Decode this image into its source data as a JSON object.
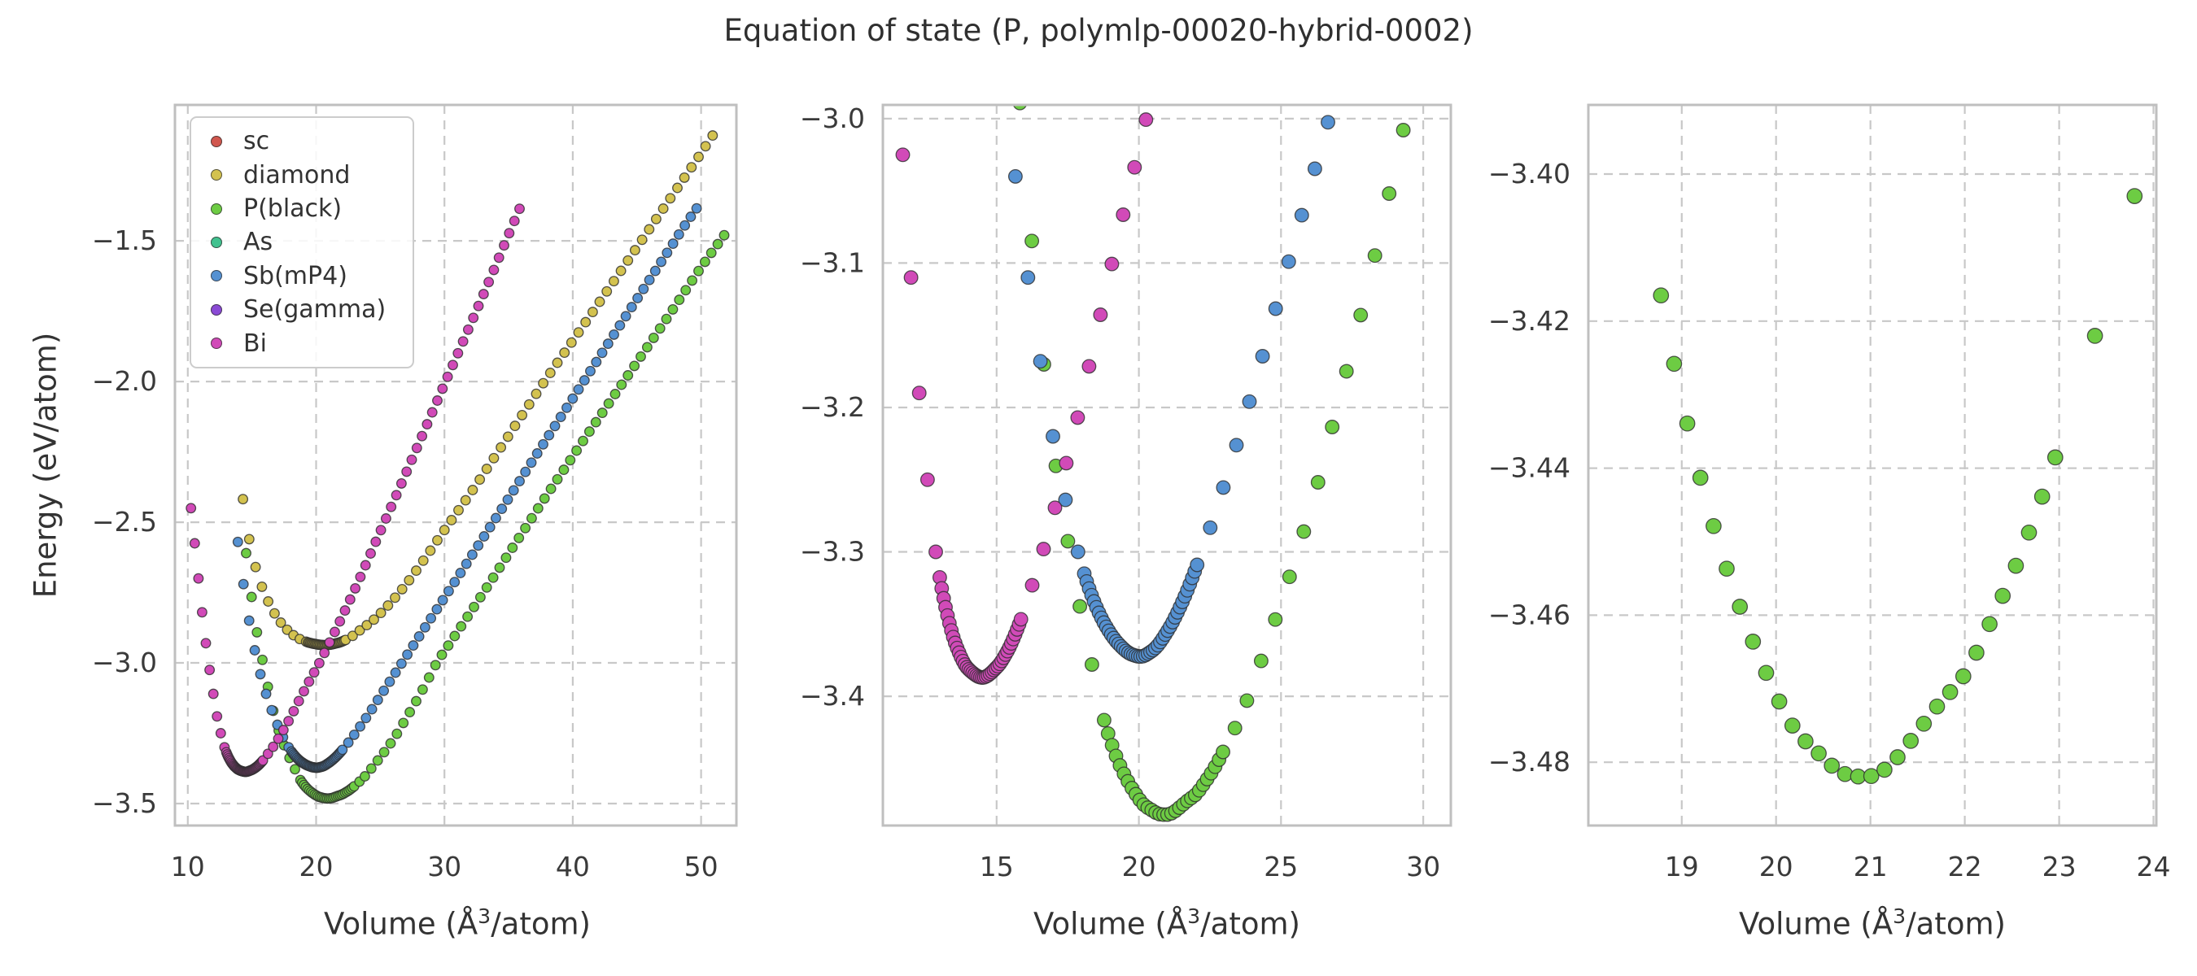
{
  "figure": {
    "title": "Equation of state (P, polymlp-00020-hybrid-0002)",
    "background": "#ffffff",
    "title_color": "#2f2f2f",
    "tick_color": "#3a3a3a",
    "label_color": "#333333",
    "grid_color": "#c8c8c8",
    "spine_color": "#bfbfbf",
    "marker_edge": "#2d2d2d",
    "legend_border": "#cccccc"
  },
  "axes_labels": {
    "x_pre": "Volume (Å",
    "x_sup": "3",
    "x_post": "/atom)",
    "x_full": "Volume (Å³/atom)",
    "y": "Energy (eV/atom)"
  },
  "legend": {
    "items": [
      {
        "label": "sc",
        "color": "#d1574e"
      },
      {
        "label": "diamond",
        "color": "#d3c24f"
      },
      {
        "label": "P(black)",
        "color": "#6dcc43"
      },
      {
        "label": "As",
        "color": "#41c28f"
      },
      {
        "label": "Sb(mP4)",
        "color": "#5591d2"
      },
      {
        "label": "Se(gamma)",
        "color": "#8a4ad5"
      },
      {
        "label": "Bi",
        "color": "#d14ab8"
      }
    ]
  },
  "chart_data": {
    "type": "scatter",
    "title": "Equation of state (P, polymlp-00020-hybrid-0002)",
    "xlabel": "Volume (Å³/atom)",
    "ylabel": "Energy (eV/atom)",
    "grid": "dashed",
    "legend_position": "upper-left of first panel",
    "series": [
      {
        "name": "sc",
        "color": "#d1574e",
        "visible": false,
        "note": "legend entry only; no distinct points discernible in the plots"
      },
      {
        "name": "diamond",
        "color": "#d3c24f",
        "visible": true,
        "v0": 20.7,
        "e_min": -2.937,
        "anchors": [
          [
            14.3,
            -2.418
          ],
          [
            14.75,
            -2.55
          ],
          [
            15.2,
            -2.645
          ],
          [
            15.7,
            -2.72
          ],
          [
            16.2,
            -2.775
          ],
          [
            16.8,
            -2.827
          ],
          [
            17.4,
            -2.865
          ],
          [
            18.1,
            -2.897
          ],
          [
            18.9,
            -2.919
          ],
          [
            19.7,
            -2.931
          ],
          [
            20.7,
            -2.937
          ],
          [
            21.7,
            -2.929
          ],
          [
            22.6,
            -2.911
          ],
          [
            23.5,
            -2.881
          ],
          [
            24.5,
            -2.846
          ],
          [
            25.5,
            -2.801
          ],
          [
            27.0,
            -2.721
          ],
          [
            28.5,
            -2.627
          ],
          [
            30.0,
            -2.528
          ],
          [
            32.0,
            -2.399
          ],
          [
            34.0,
            -2.262
          ],
          [
            36.0,
            -2.123
          ],
          [
            38.0,
            -1.986
          ],
          [
            40.0,
            -1.855
          ],
          [
            42.0,
            -1.723
          ],
          [
            44.0,
            -1.59
          ],
          [
            46.0,
            -1.456
          ],
          [
            48.0,
            -1.322
          ],
          [
            50.0,
            -1.188
          ],
          [
            50.91,
            -1.125
          ]
        ],
        "volume_segments": [
          [
            14.3,
            19.23,
            0.492
          ],
          [
            19.36,
            22.3,
            0.0947
          ],
          [
            22.85,
            50.91,
            0.55
          ]
        ]
      },
      {
        "name": "P(black)",
        "color": "#6dcc43",
        "visible": true,
        "v0": 20.95,
        "e_min": -3.482,
        "anchors": [
          [
            14.55,
            -2.61
          ],
          [
            14.97,
            -2.765
          ],
          [
            15.39,
            -2.89
          ],
          [
            15.82,
            -2.99
          ],
          [
            16.24,
            -3.085
          ],
          [
            16.66,
            -3.17
          ],
          [
            17.08,
            -3.24
          ],
          [
            17.5,
            -3.292
          ],
          [
            17.92,
            -3.337
          ],
          [
            18.35,
            -3.378
          ],
          [
            18.78,
            -3.4165
          ],
          [
            19.06,
            -3.434
          ],
          [
            19.34,
            -3.448
          ],
          [
            19.62,
            -3.459
          ],
          [
            19.9,
            -3.468
          ],
          [
            20.2,
            -3.4755
          ],
          [
            20.47,
            -3.479
          ],
          [
            20.73,
            -3.4816
          ],
          [
            20.95,
            -3.482
          ],
          [
            21.15,
            -3.481
          ],
          [
            21.4,
            -3.4775
          ],
          [
            21.7,
            -3.4725
          ],
          [
            22.0,
            -3.468
          ],
          [
            22.27,
            -3.461
          ],
          [
            22.55,
            -3.453
          ],
          [
            22.83,
            -3.4435
          ],
          [
            22.96,
            -3.4385
          ],
          [
            23.38,
            -3.422
          ],
          [
            23.8,
            -3.403
          ],
          [
            24.3,
            -3.3755
          ],
          [
            24.9,
            -3.341
          ],
          [
            25.5,
            -3.305
          ],
          [
            26.2,
            -3.259
          ],
          [
            27.0,
            -3.198
          ],
          [
            27.9,
            -3.128
          ],
          [
            28.65,
            -3.065
          ],
          [
            29.4,
            -3.0
          ],
          [
            30.5,
            -2.925
          ],
          [
            32.0,
            -2.822
          ],
          [
            33.5,
            -2.718
          ],
          [
            35.0,
            -2.612
          ],
          [
            36.5,
            -2.507
          ],
          [
            38.0,
            -2.402
          ],
          [
            39.5,
            -2.3
          ],
          [
            41.0,
            -2.198
          ],
          [
            42.5,
            -2.098
          ],
          [
            44.0,
            -1.998
          ],
          [
            45.5,
            -1.898
          ],
          [
            47.0,
            -1.798
          ],
          [
            48.5,
            -1.696
          ],
          [
            50.0,
            -1.594
          ],
          [
            51.8,
            -1.48
          ]
        ],
        "volume_segments": [
          [
            14.55,
            18.36,
            0.4222
          ],
          [
            18.78,
            22.97,
            0.1393
          ],
          [
            23.38,
            23.81,
            0.42
          ],
          [
            24.3,
            51.81,
            0.5
          ]
        ]
      },
      {
        "name": "As",
        "color": "#41c28f",
        "visible": false,
        "note": "legend entry only; no distinct points discernible in the plots"
      },
      {
        "name": "Sb(mP4)",
        "color": "#5591d2",
        "visible": true,
        "v0": 20.05,
        "e_min": -3.3725,
        "anchors": [
          [
            13.9,
            -2.57
          ],
          [
            14.34,
            -2.72
          ],
          [
            14.78,
            -2.85
          ],
          [
            15.22,
            -2.955
          ],
          [
            15.66,
            -3.04
          ],
          [
            16.1,
            -3.11
          ],
          [
            16.54,
            -3.168
          ],
          [
            16.98,
            -3.22
          ],
          [
            17.42,
            -3.264
          ],
          [
            17.86,
            -3.3
          ],
          [
            18.3,
            -3.328
          ],
          [
            18.8,
            -3.35
          ],
          [
            19.3,
            -3.364
          ],
          [
            19.75,
            -3.371
          ],
          [
            20.05,
            -3.3725
          ],
          [
            20.5,
            -3.368
          ],
          [
            21.0,
            -3.355
          ],
          [
            21.5,
            -3.336
          ],
          [
            22.05,
            -3.309
          ],
          [
            22.7,
            -3.272
          ],
          [
            23.4,
            -3.228
          ],
          [
            24.2,
            -3.175
          ],
          [
            25.0,
            -3.118
          ],
          [
            26.0,
            -3.048
          ],
          [
            27.0,
            -2.978
          ],
          [
            28.0,
            -2.908
          ],
          [
            29.5,
            -2.803
          ],
          [
            31.0,
            -2.698
          ],
          [
            32.5,
            -2.592
          ],
          [
            34.0,
            -2.486
          ],
          [
            35.5,
            -2.379
          ],
          [
            37.0,
            -2.272
          ],
          [
            38.5,
            -2.166
          ],
          [
            40.0,
            -2.06
          ],
          [
            41.5,
            -1.954
          ],
          [
            43.0,
            -1.848
          ],
          [
            44.5,
            -1.742
          ],
          [
            46.0,
            -1.637
          ],
          [
            47.5,
            -1.532
          ],
          [
            49.0,
            -1.427
          ],
          [
            49.66,
            -1.384
          ]
        ],
        "volume_segments": [
          [
            13.9,
            17.87,
            0.44
          ],
          [
            18.08,
            22.06,
            0.0863
          ],
          [
            22.51,
            49.66,
            0.46
          ]
        ]
      },
      {
        "name": "Se(gamma)",
        "color": "#8a4ad5",
        "visible": false,
        "note": "legend entry only; no distinct points discernible in the plots"
      },
      {
        "name": "Bi",
        "color": "#d14ab8",
        "visible": true,
        "v0": 14.5,
        "e_min": -3.387,
        "anchors": [
          [
            10.25,
            -2.45
          ],
          [
            10.54,
            -2.575
          ],
          [
            10.83,
            -2.7
          ],
          [
            11.12,
            -2.82
          ],
          [
            11.41,
            -2.93
          ],
          [
            11.7,
            -3.025
          ],
          [
            11.99,
            -3.11
          ],
          [
            12.28,
            -3.19
          ],
          [
            12.57,
            -3.25
          ],
          [
            12.86,
            -3.3
          ],
          [
            13.2,
            -3.338
          ],
          [
            13.6,
            -3.366
          ],
          [
            14.0,
            -3.381
          ],
          [
            14.5,
            -3.387
          ],
          [
            15.0,
            -3.38
          ],
          [
            15.4,
            -3.368
          ],
          [
            15.85,
            -3.347
          ],
          [
            16.3,
            -3.32
          ],
          [
            16.8,
            -3.288
          ],
          [
            17.3,
            -3.25
          ],
          [
            17.85,
            -3.207
          ],
          [
            18.4,
            -3.158
          ],
          [
            19.0,
            -3.105
          ],
          [
            19.6,
            -3.054
          ],
          [
            20.2,
            -3.005
          ],
          [
            21.0,
            -2.932
          ],
          [
            22.0,
            -2.838
          ],
          [
            23.2,
            -2.72
          ],
          [
            24.5,
            -2.585
          ],
          [
            26.0,
            -2.43
          ],
          [
            27.5,
            -2.273
          ],
          [
            29.0,
            -2.115
          ],
          [
            30.5,
            -1.957
          ],
          [
            32.0,
            -1.8
          ],
          [
            33.4,
            -1.652
          ],
          [
            34.8,
            -1.5
          ],
          [
            35.86,
            -1.385
          ]
        ],
        "volume_segments": [
          [
            10.25,
            12.87,
            0.29
          ],
          [
            13.0,
            15.86,
            0.068
          ],
          [
            16.25,
            35.86,
            0.4
          ]
        ]
      }
    ],
    "panels": [
      {
        "id": "left",
        "rect": [
          215,
          129,
          690,
          886
        ],
        "xlim": [
          9.0,
          52.75
        ],
        "ylim": [
          -3.578,
          -1.017
        ],
        "x_ticks": {
          "values": [
            10,
            20,
            30,
            40,
            50
          ],
          "labels": [
            "10",
            "20",
            "30",
            "40",
            "50"
          ]
        },
        "y_ticks": {
          "values": [
            -1.5,
            -2.0,
            -2.5,
            -3.0,
            -3.5
          ],
          "labels": [
            "−1.5",
            "−2.0",
            "−2.5",
            "−3.0",
            "−3.5"
          ]
        },
        "marker_r": 5.8
      },
      {
        "id": "middle",
        "rect": [
          1085,
          129,
          698,
          886
        ],
        "xlim": [
          11.0,
          30.97
        ],
        "ylim": [
          -3.4895,
          -2.9905
        ],
        "x_ticks": {
          "values": [
            15,
            20,
            25,
            30
          ],
          "labels": [
            "15",
            "20",
            "25",
            "30"
          ]
        },
        "y_ticks": {
          "values": [
            -3.0,
            -3.1,
            -3.2,
            -3.3,
            -3.4
          ],
          "labels": [
            "−3.0",
            "−3.1",
            "−3.2",
            "−3.3",
            "−3.4"
          ]
        },
        "marker_r": 8.3
      },
      {
        "id": "right",
        "rect": [
          1952,
          129,
          698,
          886
        ],
        "xlim": [
          18.01,
          24.03
        ],
        "ylim": [
          -3.4886,
          -3.3906
        ],
        "x_ticks": {
          "values": [
            19,
            20,
            21,
            22,
            23,
            24
          ],
          "labels": [
            "19",
            "20",
            "21",
            "22",
            "23",
            "24"
          ]
        },
        "y_ticks": {
          "values": [
            -3.4,
            -3.42,
            -3.44,
            -3.46,
            -3.48
          ],
          "labels": [
            "−3.40",
            "−3.42",
            "−3.44",
            "−3.46",
            "−3.48"
          ]
        },
        "marker_r": 9.2
      }
    ]
  }
}
